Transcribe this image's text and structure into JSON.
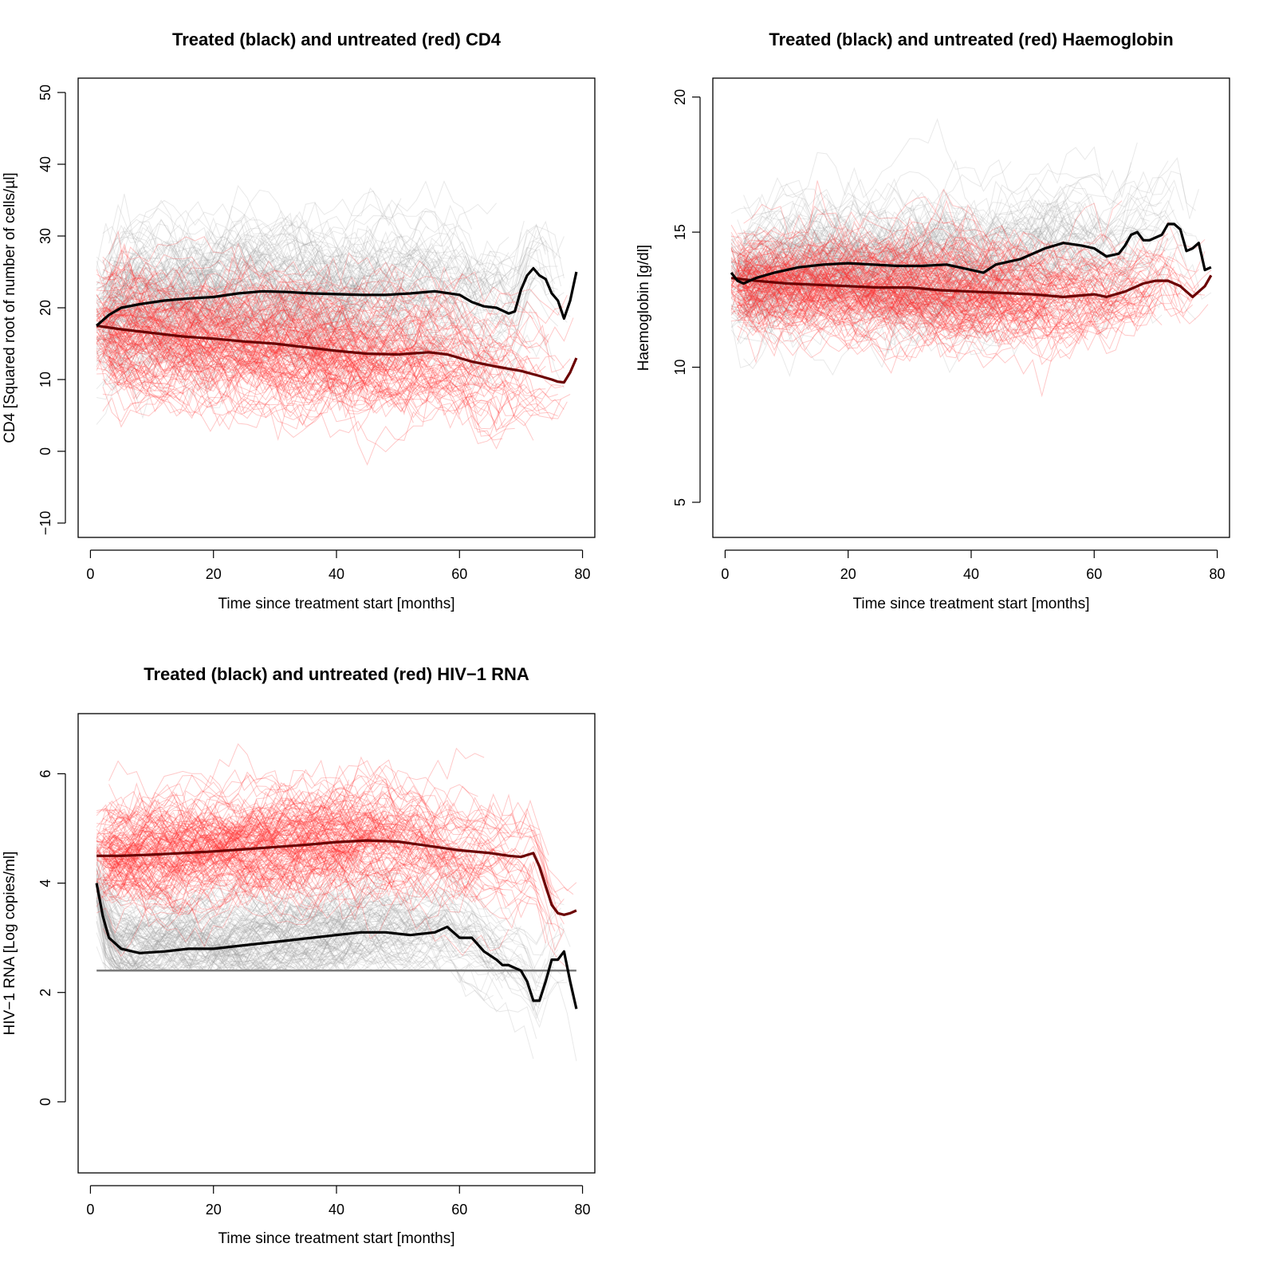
{
  "colors": {
    "treated_trajectory": "#9a9a9a",
    "untreated_trajectory": "#ff2a2a",
    "treated_mean": "#000000",
    "untreated_mean": "#6b0000"
  },
  "chart_data": [
    {
      "type": "line",
      "title": "Treated (black) and untreated (red) CD4",
      "xlabel": "Time since treatment start [months]",
      "ylabel": "CD4 [Squared root of number of cells/µl]",
      "xlim": [
        -2,
        82
      ],
      "ylim": [
        -12,
        52
      ],
      "xticks": [
        0,
        20,
        40,
        60,
        80
      ],
      "yticks": [
        -10,
        0,
        10,
        20,
        30,
        40,
        50
      ],
      "spread": {
        "treated": 5.5,
        "untreated": 4.8
      },
      "series": [
        {
          "name": "Treated (black)",
          "x": [
            1,
            3,
            5,
            8,
            12,
            16,
            20,
            24,
            28,
            32,
            36,
            40,
            44,
            48,
            52,
            56,
            60,
            62,
            64,
            66,
            68,
            69,
            70,
            71,
            72,
            73,
            74,
            75,
            76,
            77,
            78,
            79
          ],
          "y": [
            17.5,
            19.0,
            20.0,
            20.5,
            21.0,
            21.3,
            21.5,
            22.0,
            22.3,
            22.2,
            22.0,
            21.9,
            21.8,
            21.8,
            22.0,
            22.3,
            21.8,
            20.8,
            20.2,
            20.0,
            19.2,
            19.5,
            22.5,
            24.5,
            25.5,
            24.5,
            24.0,
            22.0,
            21.0,
            18.5,
            21.0,
            25.0
          ]
        },
        {
          "name": "Untreated (red)",
          "x": [
            1,
            5,
            10,
            15,
            20,
            25,
            30,
            35,
            40,
            45,
            50,
            55,
            58,
            62,
            66,
            70,
            73,
            75,
            76,
            77,
            78,
            79
          ],
          "y": [
            17.5,
            17.0,
            16.5,
            16.0,
            15.7,
            15.3,
            15.0,
            14.5,
            14.0,
            13.6,
            13.5,
            13.8,
            13.5,
            12.5,
            11.8,
            11.2,
            10.5,
            10.0,
            9.7,
            9.6,
            11.0,
            13.0
          ]
        }
      ]
    },
    {
      "type": "line",
      "title": "Treated (black) and untreated (red) Haemoglobin",
      "xlabel": "Time since treatment start [months]",
      "ylabel": "Haemoglobin [g/dl]",
      "xlim": [
        -2,
        82
      ],
      "ylim": [
        3.7,
        20.7
      ],
      "xticks": [
        0,
        20,
        40,
        60,
        80
      ],
      "yticks": [
        5,
        10,
        15,
        20
      ],
      "spread": {
        "treated": 1.4,
        "untreated": 1.2
      },
      "series": [
        {
          "name": "Treated (black)",
          "x": [
            1,
            2,
            3,
            5,
            8,
            12,
            16,
            20,
            24,
            28,
            32,
            36,
            40,
            42,
            44,
            48,
            52,
            55,
            58,
            60,
            62,
            64,
            65,
            66,
            67,
            68,
            69,
            70,
            71,
            72,
            73,
            74,
            75,
            76,
            77,
            78,
            79
          ],
          "y": [
            13.5,
            13.2,
            13.1,
            13.3,
            13.5,
            13.7,
            13.8,
            13.85,
            13.8,
            13.75,
            13.75,
            13.8,
            13.6,
            13.5,
            13.8,
            14.0,
            14.4,
            14.6,
            14.5,
            14.4,
            14.1,
            14.2,
            14.5,
            14.9,
            15.0,
            14.7,
            14.7,
            14.8,
            14.9,
            15.3,
            15.3,
            15.1,
            14.3,
            14.4,
            14.6,
            13.6,
            13.7
          ]
        },
        {
          "name": "Untreated (red)",
          "x": [
            1,
            5,
            10,
            15,
            20,
            25,
            30,
            35,
            40,
            45,
            50,
            55,
            60,
            62,
            65,
            68,
            70,
            72,
            74,
            76,
            78,
            79
          ],
          "y": [
            13.3,
            13.2,
            13.1,
            13.05,
            13.0,
            12.95,
            12.95,
            12.85,
            12.8,
            12.75,
            12.7,
            12.6,
            12.7,
            12.6,
            12.8,
            13.1,
            13.2,
            13.2,
            13.0,
            12.6,
            13.0,
            13.4
          ]
        }
      ]
    },
    {
      "type": "line",
      "title": "Treated (black) and untreated (red) HIV−1 RNA",
      "xlabel": "Time since treatment start [months]",
      "ylabel": "HIV−1 RNA [Log copies/ml]",
      "xlim": [
        -2,
        82
      ],
      "ylim": [
        -1.3,
        7.1
      ],
      "xticks": [
        0,
        20,
        40,
        60,
        80
      ],
      "yticks": [
        0,
        2,
        4,
        6
      ],
      "detection_limit": 2.4,
      "spread": {
        "treated": 0.55,
        "untreated": 0.6
      },
      "series": [
        {
          "name": "Treated (black)",
          "x": [
            1,
            2,
            3,
            5,
            8,
            12,
            16,
            20,
            24,
            28,
            32,
            36,
            40,
            44,
            48,
            52,
            56,
            58,
            60,
            62,
            64,
            66,
            67,
            68,
            69,
            70,
            71,
            72,
            73,
            74,
            75,
            76,
            77,
            78,
            79
          ],
          "y": [
            4.0,
            3.4,
            3.0,
            2.8,
            2.72,
            2.75,
            2.8,
            2.8,
            2.85,
            2.9,
            2.95,
            3.0,
            3.05,
            3.1,
            3.1,
            3.05,
            3.1,
            3.2,
            3.0,
            3.0,
            2.75,
            2.6,
            2.5,
            2.5,
            2.45,
            2.4,
            2.2,
            1.85,
            1.85,
            2.2,
            2.6,
            2.6,
            2.75,
            2.2,
            1.7
          ]
        },
        {
          "name": "Untreated (red)",
          "x": [
            1,
            5,
            10,
            15,
            20,
            25,
            30,
            35,
            40,
            45,
            50,
            55,
            60,
            65,
            68,
            70,
            72,
            73,
            74,
            75,
            76,
            77,
            78,
            79
          ],
          "y": [
            4.5,
            4.5,
            4.52,
            4.55,
            4.58,
            4.62,
            4.66,
            4.7,
            4.75,
            4.78,
            4.76,
            4.68,
            4.6,
            4.55,
            4.5,
            4.48,
            4.55,
            4.3,
            3.95,
            3.6,
            3.45,
            3.42,
            3.45,
            3.5
          ]
        }
      ]
    }
  ]
}
